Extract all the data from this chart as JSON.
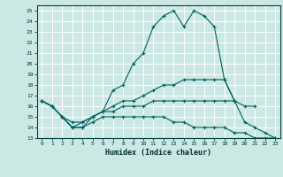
{
  "xlabel": "Humidex (Indice chaleur)",
  "xlim": [
    -0.5,
    23.5
  ],
  "ylim": [
    13,
    25.5
  ],
  "yticks": [
    13,
    14,
    15,
    16,
    17,
    18,
    19,
    20,
    21,
    22,
    23,
    24,
    25
  ],
  "xticks": [
    0,
    1,
    2,
    3,
    4,
    5,
    6,
    7,
    8,
    9,
    10,
    11,
    12,
    13,
    14,
    15,
    16,
    17,
    18,
    19,
    20,
    21,
    22,
    23
  ],
  "bg_color": "#cce8e4",
  "grid_color": "#ffffff",
  "line_color": "#006060",
  "lines": [
    {
      "x": [
        0,
        1,
        2,
        3,
        4,
        5,
        6,
        7,
        8,
        9,
        10,
        11,
        12,
        13,
        14,
        15,
        16,
        17,
        18,
        19
      ],
      "y": [
        16.5,
        16.0,
        15.0,
        14.5,
        14.5,
        15.0,
        15.5,
        17.5,
        18.0,
        20.0,
        21.0,
        23.5,
        24.5,
        25.0,
        23.5,
        25.0,
        24.5,
        23.5,
        18.5,
        16.5
      ]
    },
    {
      "x": [
        0,
        1,
        2,
        3,
        4,
        5,
        6,
        7,
        8,
        9,
        10,
        11,
        12,
        13,
        14,
        15,
        16,
        17,
        18,
        19,
        20,
        21,
        22,
        23
      ],
      "y": [
        16.5,
        16.0,
        15.0,
        14.0,
        14.5,
        15.0,
        15.5,
        16.0,
        16.5,
        16.5,
        17.0,
        17.5,
        18.0,
        18.0,
        18.5,
        18.5,
        18.5,
        18.5,
        18.5,
        16.5,
        14.5,
        14.0,
        13.5,
        13.0
      ]
    },
    {
      "x": [
        0,
        1,
        2,
        3,
        4,
        5,
        6,
        7,
        8,
        9,
        10,
        11,
        12,
        13,
        14,
        15,
        16,
        17,
        18,
        19,
        20,
        21
      ],
      "y": [
        16.5,
        16.0,
        15.0,
        14.0,
        14.0,
        15.0,
        15.5,
        15.5,
        16.0,
        16.0,
        16.0,
        16.5,
        16.5,
        16.5,
        16.5,
        16.5,
        16.5,
        16.5,
        16.5,
        16.5,
        16.0,
        16.0
      ]
    },
    {
      "x": [
        0,
        1,
        2,
        3,
        4,
        5,
        6,
        7,
        8,
        9,
        10,
        11,
        12,
        13,
        14,
        15,
        16,
        17,
        18,
        19,
        20,
        21,
        22,
        23
      ],
      "y": [
        16.5,
        16.0,
        15.0,
        14.0,
        14.0,
        14.5,
        15.0,
        15.0,
        15.0,
        15.0,
        15.0,
        15.0,
        15.0,
        14.5,
        14.5,
        14.0,
        14.0,
        14.0,
        14.0,
        13.5,
        13.5,
        13.0,
        13.0,
        13.0
      ]
    }
  ]
}
